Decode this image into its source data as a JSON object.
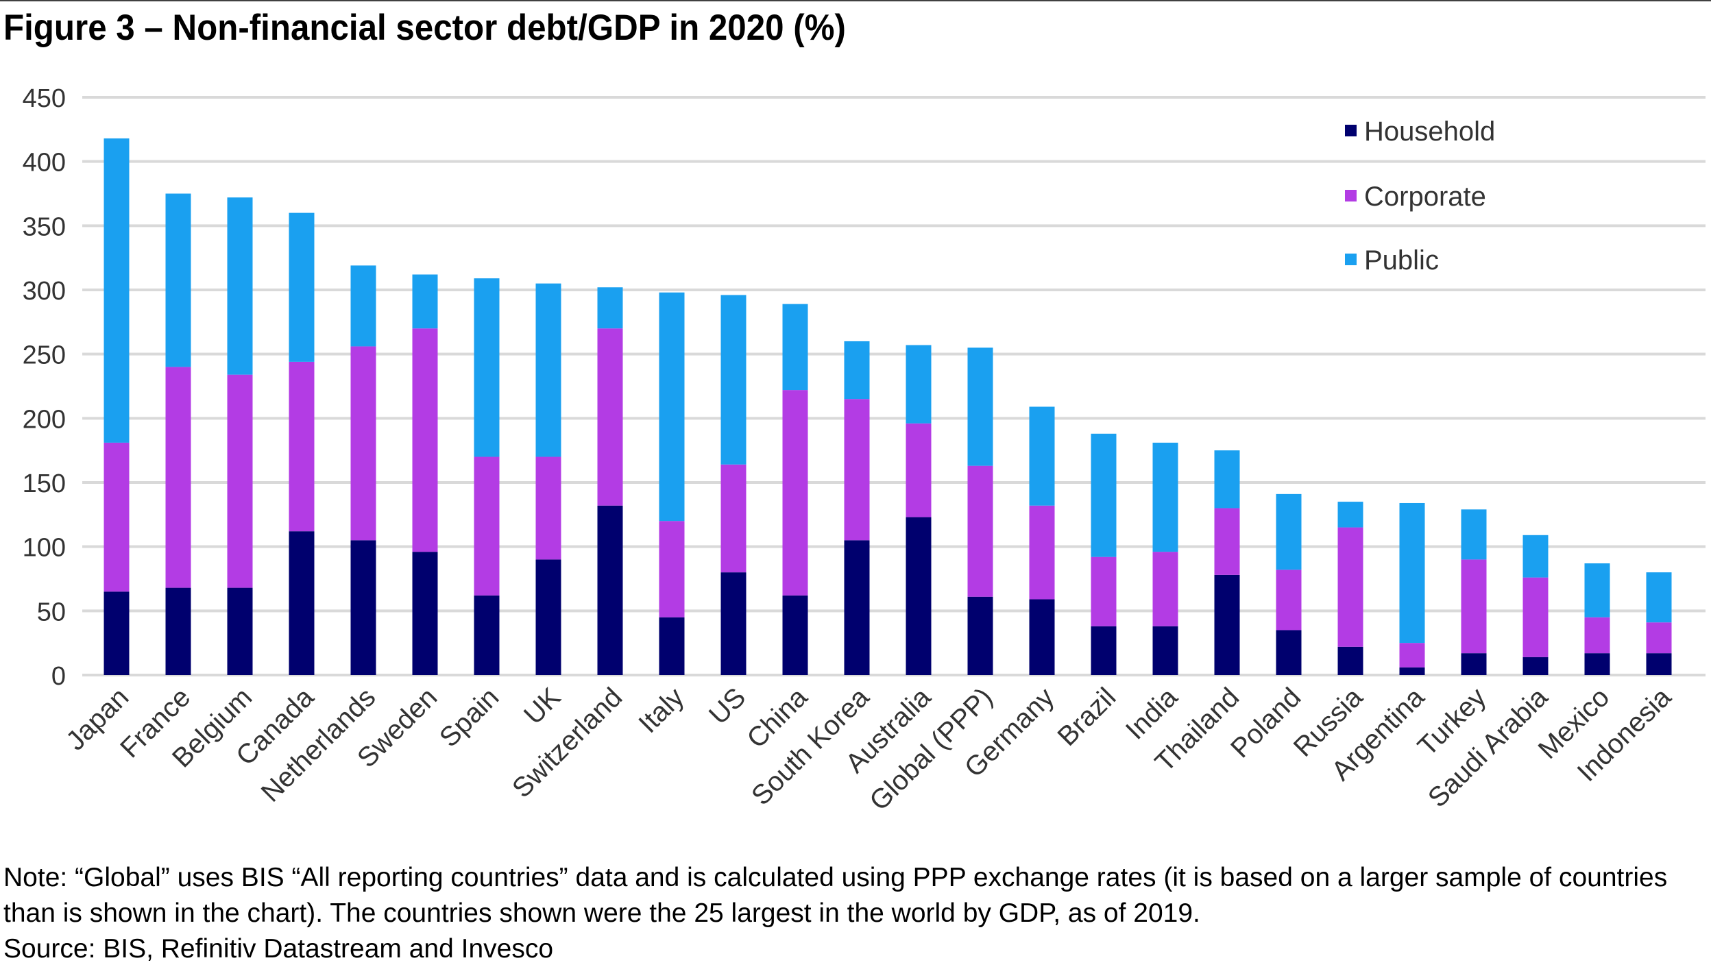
{
  "title": "Figure 3 – Non-financial sector debt/GDP in 2020 (%)",
  "note": "Note: “Global” uses BIS “All reporting countries” data and is calculated using PPP exchange rates (it is based on a larger sample of countries than is shown in the chart).  The countries shown were the 25 largest in the world by GDP, as of 2019.",
  "source": "Source: BIS, Refinitiv Datastream and Invesco",
  "chart_data": {
    "type": "bar",
    "stacked": true,
    "title": "Figure 3 – Non-financial sector debt/GDP in 2020 (%)",
    "xlabel": "",
    "ylabel": "",
    "ylim": [
      0,
      450
    ],
    "yticks": [
      0,
      50,
      100,
      150,
      200,
      250,
      300,
      350,
      400,
      450
    ],
    "grid": true,
    "legend_position": "top-right",
    "categories": [
      "Japan",
      "France",
      "Belgium",
      "Canada",
      "Netherlands",
      "Sweden",
      "Spain",
      "UK",
      "Switzerland",
      "Italy",
      "US",
      "China",
      "South Korea",
      "Australia",
      "Global (PPP)",
      "Germany",
      "Brazil",
      "India",
      "Thailand",
      "Poland",
      "Russia",
      "Argentina",
      "Turkey",
      "Saudi Arabia",
      "Mexico",
      "Indonesia"
    ],
    "series": [
      {
        "name": "Household",
        "color": "#00006e",
        "values": [
          65,
          68,
          68,
          112,
          105,
          96,
          62,
          90,
          132,
          45,
          80,
          62,
          105,
          123,
          61,
          59,
          38,
          38,
          78,
          35,
          22,
          6,
          17,
          14,
          17,
          17
        ]
      },
      {
        "name": "Corporate",
        "color": "#b33ce4",
        "values": [
          116,
          172,
          166,
          132,
          151,
          174,
          108,
          80,
          138,
          75,
          84,
          160,
          110,
          73,
          102,
          73,
          54,
          58,
          52,
          47,
          93,
          19,
          73,
          62,
          28,
          24
        ]
      },
      {
        "name": "Public",
        "color": "#1aa0f0",
        "values": [
          237,
          135,
          138,
          116,
          63,
          42,
          139,
          135,
          32,
          178,
          132,
          67,
          45,
          61,
          92,
          77,
          96,
          85,
          45,
          59,
          20,
          109,
          39,
          33,
          42,
          39
        ]
      }
    ]
  }
}
